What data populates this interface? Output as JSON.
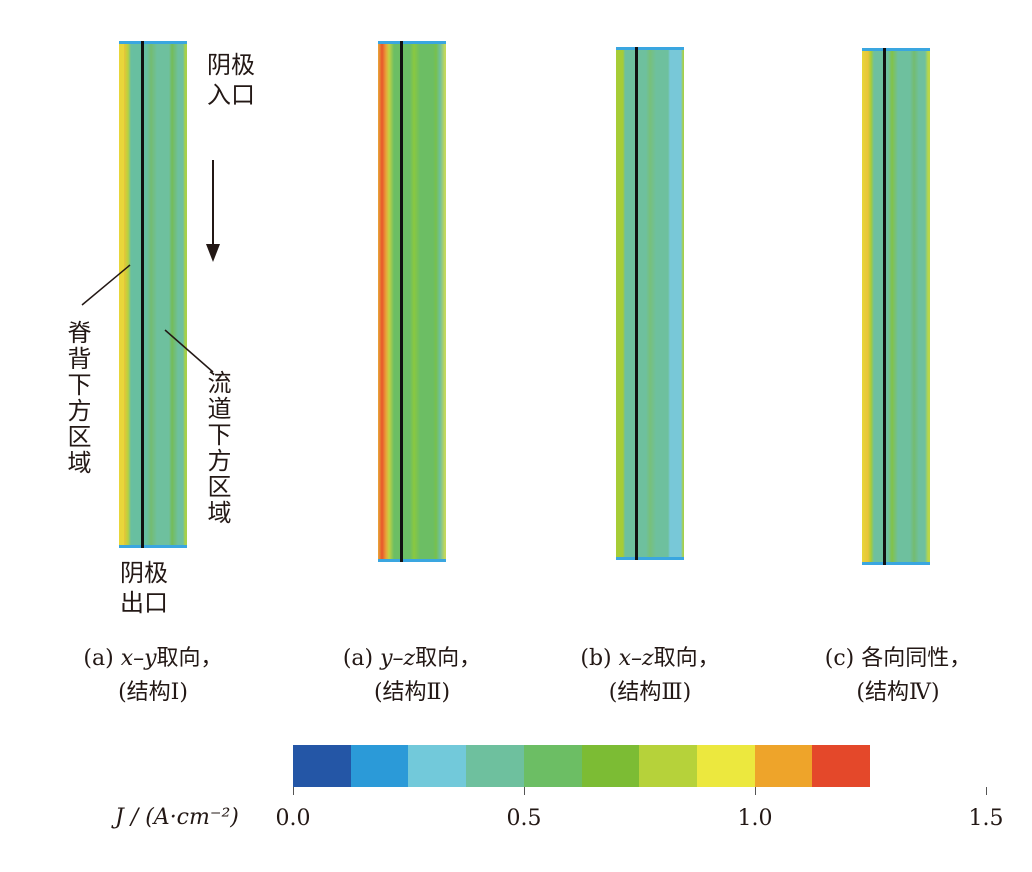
{
  "annotations": {
    "inlet": "阴极\n入口",
    "outlet": "阴极\n出口",
    "rib": "脊背下方区域",
    "channel": "流道下方区域"
  },
  "captions": [
    {
      "line1_prefix": "(a) ",
      "line1_axis": "x–y",
      "line1_suffix": "取向，",
      "line2": "(结构Ⅰ)"
    },
    {
      "line1_prefix": "(a) ",
      "line1_axis": "y–z",
      "line1_suffix": "取向，",
      "line2": "(结构Ⅱ)"
    },
    {
      "line1_prefix": "(b) ",
      "line1_axis": "x–z",
      "line1_suffix": "取向，",
      "line2": "(结构Ⅲ)"
    },
    {
      "line1_prefix": "(c) ",
      "line1_axis": "",
      "line1_suffix": "各向同性，",
      "line2": "(结构Ⅳ)"
    }
  ],
  "colorbar": {
    "label": "J / (A·cm⁻²)",
    "colors": [
      "#2456a6",
      "#2b9ad8",
      "#72c9da",
      "#6ec09e",
      "#6cbe64",
      "#7cbc34",
      "#b6d23a",
      "#ece83e",
      "#eea42a",
      "#e4482a"
    ],
    "range": [
      0,
      1.5
    ],
    "ticks": [
      "0.0",
      "0.5",
      "1.0",
      "1.5"
    ]
  }
}
